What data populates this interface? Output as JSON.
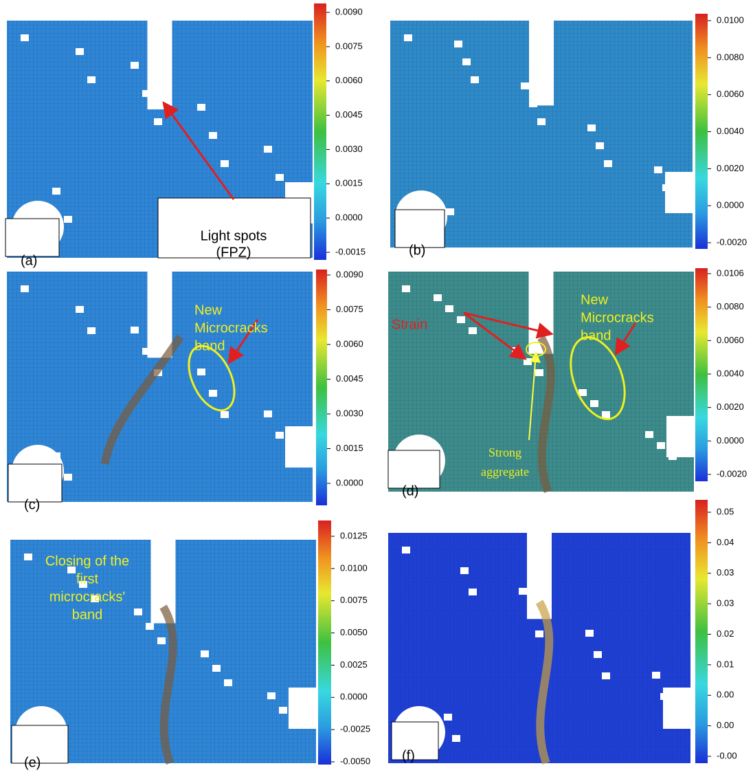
{
  "panels": [
    {
      "label": "(a)",
      "colorbar_ticks": [
        "0.0090",
        "0.0075",
        "0.0060",
        "0.0045",
        "0.0030",
        "0.0015",
        "0.0000",
        "-0.0015"
      ],
      "annotations": [
        [
          "Light spots",
          "(FPZ)"
        ]
      ]
    },
    {
      "label": "(b)",
      "colorbar_ticks": [
        "0.0100",
        "0.0080",
        "0.0060",
        "0.0040",
        "0.0020",
        "0.0000",
        "-0.0020"
      ],
      "annotations": []
    },
    {
      "label": "(c)",
      "colorbar_ticks": [
        "0.0090",
        "0.0075",
        "0.0060",
        "0.0045",
        "0.0030",
        "0.0015",
        "0.0000"
      ],
      "annotations": [
        [
          "New",
          "Microcracks",
          "band"
        ]
      ]
    },
    {
      "label": "(d)",
      "colorbar_ticks": [
        "0.0106",
        "0.0080",
        "0.0060",
        "0.0040",
        "0.0020",
        "0.0000",
        "-0.0020"
      ],
      "annotations": [
        [
          "Strain"
        ],
        [
          "New",
          "Microcracks",
          "band"
        ],
        [
          "Strong",
          "aggregate"
        ]
      ]
    },
    {
      "label": "(e)",
      "colorbar_ticks": [
        "0.0125",
        "0.0100",
        "0.0075",
        "0.0050",
        "0.0025",
        "0.0000",
        "-0.0025",
        "-0.0050"
      ],
      "annotations": [
        [
          "Closing of the",
          "first",
          "microcracks'",
          "band"
        ]
      ]
    },
    {
      "label": "(f)",
      "colorbar_ticks": [
        "0.05",
        "0.04",
        "0.03",
        "0.03",
        "0.02",
        "0.01",
        "0.00",
        "0.00",
        "-0.00"
      ],
      "annotations": []
    }
  ]
}
